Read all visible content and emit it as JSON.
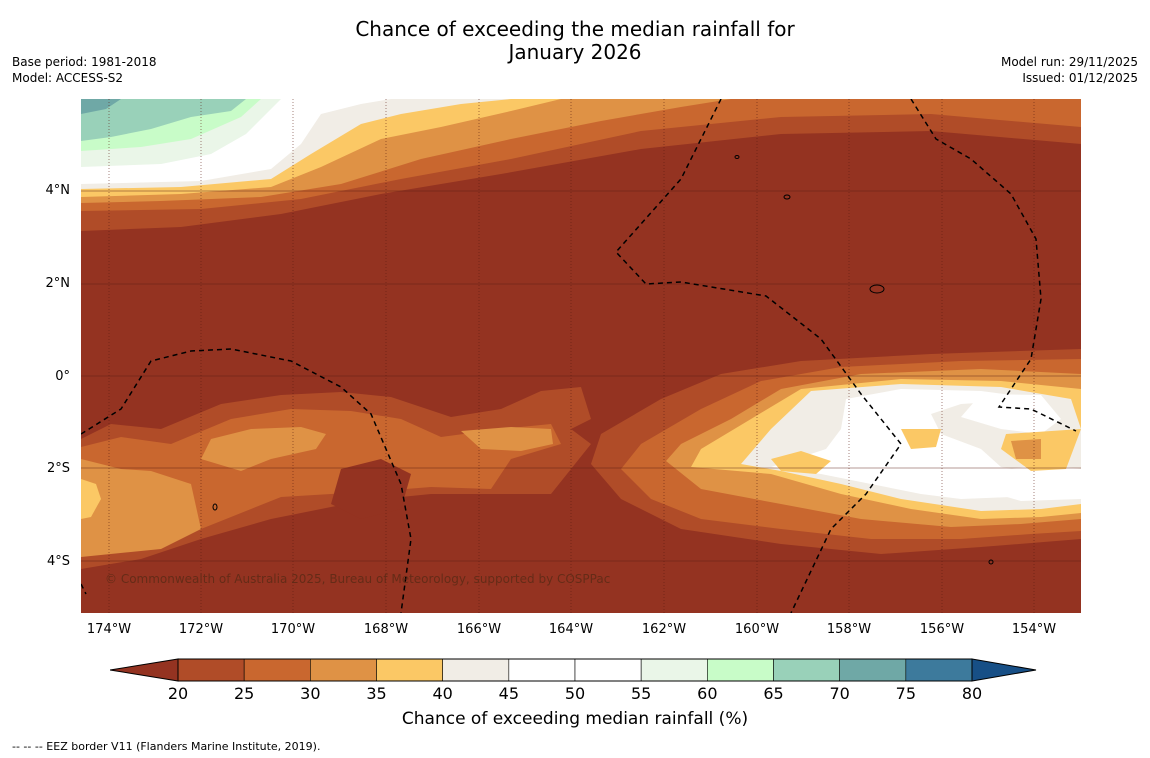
{
  "header": {
    "title_line1": "Chance of exceeding the median rainfall for",
    "title_line2": "January 2026",
    "base_period": "Base period: 1981-2018",
    "model": "Model: ACCESS-S2",
    "model_run": "Model run: 29/11/2025",
    "issued": "Issued: 01/12/2025"
  },
  "map": {
    "lat_labels": [
      "4°N",
      "2°N",
      "0°",
      "2°S",
      "4°S"
    ],
    "lon_labels": [
      "174°W",
      "172°W",
      "170°W",
      "168°W",
      "166°W",
      "164°W",
      "162°W",
      "160°W",
      "158°W",
      "156°W",
      "154°W"
    ],
    "copyright": "© Commonwealth of Australia 2025, Bureau of Meteorology, supported by COSPPac",
    "dominant_category": "< 20",
    "colors": {
      "lt20": "#943321",
      "c20_25": "#b04c28",
      "c25_30": "#c9672f",
      "c30_35": "#df9245",
      "c35_40": "#fbc865",
      "c40_45": "#f1ede6",
      "c45_55": "#ffffff",
      "c55_60": "#eaf6e8",
      "c60_65": "#c8fcc8",
      "c65_70": "#99d1b9",
      "c70_75": "#6fa8a6",
      "c75_80": "#3d7a9c",
      "gt80": "#174f86"
    }
  },
  "colorbar": {
    "ticks": [
      "20",
      "25",
      "30",
      "35",
      "40",
      "45",
      "50",
      "55",
      "60",
      "65",
      "70",
      "75",
      "80"
    ],
    "colors": [
      "#b04c28",
      "#c9672f",
      "#df9245",
      "#fbc865",
      "#f1ede6",
      "#ffffff",
      "#ffffff",
      "#eaf6e8",
      "#c8fcc8",
      "#99d1b9",
      "#6fa8a6",
      "#3d7a9c"
    ],
    "low_extend_color": "#943321",
    "high_extend_color": "#174f86",
    "label": "Chance of exceeding median rainfall (%)"
  },
  "footnote": "--  --  -- EEZ border V11 (Flanders Marine Institute, 2019)."
}
